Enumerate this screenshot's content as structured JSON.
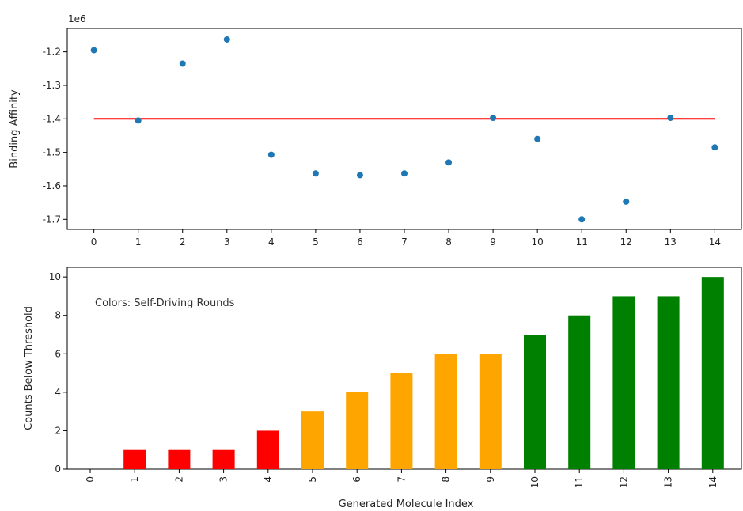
{
  "chart_data": [
    {
      "type": "scatter",
      "title": "",
      "xlabel": "",
      "ylabel": "Binding Affinity",
      "offset_label": "1e6",
      "x": [
        0,
        1,
        2,
        3,
        4,
        5,
        6,
        7,
        8,
        9,
        10,
        11,
        12,
        13,
        14
      ],
      "series": [
        {
          "values": [
            -1.195,
            -1.405,
            -1.235,
            -1.163,
            -1.507,
            -1.563,
            -1.568,
            -1.563,
            -1.53,
            -1.397,
            -1.46,
            -1.7,
            -1.647,
            -1.397,
            -1.485
          ],
          "color": "#1f77b4"
        }
      ],
      "threshold": {
        "value": -1.4,
        "x_range": [
          0,
          14
        ],
        "color": "#ff0000"
      },
      "xticks": [
        "0",
        "1",
        "2",
        "3",
        "4",
        "5",
        "6",
        "7",
        "8",
        "9",
        "10",
        "11",
        "12",
        "13",
        "14"
      ],
      "yticks": [
        "-1.2",
        "-1.3",
        "-1.4",
        "-1.5",
        "-1.6",
        "-1.7"
      ],
      "ylim": [
        -1.73,
        -1.13
      ],
      "xlim": [
        -0.6,
        14.6
      ],
      "grid": false,
      "legend": "none"
    },
    {
      "type": "bar",
      "title": "",
      "xlabel": "Generated Molecule Index",
      "ylabel": "Counts Below Threshold",
      "annotation": "Colors: Self-Driving Rounds",
      "categories": [
        "0",
        "1",
        "2",
        "3",
        "4",
        "5",
        "6",
        "7",
        "8",
        "9",
        "10",
        "11",
        "12",
        "13",
        "14"
      ],
      "values": [
        0,
        1,
        1,
        1,
        2,
        3,
        4,
        5,
        6,
        6,
        7,
        8,
        9,
        9,
        10
      ],
      "bar_colors": [
        "#ff0000",
        "#ff0000",
        "#ff0000",
        "#ff0000",
        "#ff0000",
        "#ffa500",
        "#ffa500",
        "#ffa500",
        "#ffa500",
        "#ffa500",
        "#008000",
        "#008000",
        "#008000",
        "#008000",
        "#008000"
      ],
      "yticks": [
        "0",
        "2",
        "4",
        "6",
        "8",
        "10"
      ],
      "ylim": [
        0,
        10.5
      ],
      "xtick_rotation": 90,
      "grid": false,
      "legend": "none"
    }
  ]
}
